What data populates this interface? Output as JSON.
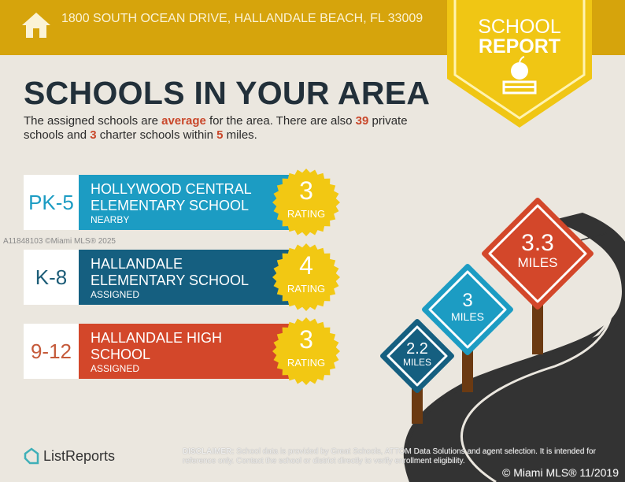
{
  "header": {
    "address": "1800 SOUTH OCEAN DRIVE, HALLANDALE BEACH, FL 33009",
    "icon": "house-icon"
  },
  "badge": {
    "line1": "SCHOOL",
    "line2": "REPORT",
    "icon": "apple-books-icon"
  },
  "title": "SCHOOLS IN YOUR AREA",
  "summary": {
    "p1": "The assigned schools are ",
    "quality": "average",
    "p2": " for the area. There are also ",
    "private_count": "39",
    "p3": " private schools and ",
    "charter_count": "3",
    "p4": " charter schools within ",
    "miles": "5",
    "p5": " miles."
  },
  "schools": [
    {
      "grades": "PK-5",
      "name": "HOLLYWOOD CENTRAL ELEMENTARY SCHOOL",
      "status": "NEARBY",
      "rating": "3",
      "rating_label": "RATING",
      "color": "#1c9cc3",
      "distance": "3",
      "distance_unit": "MILES"
    },
    {
      "grades": "K-8",
      "name": "HALLANDALE ELEMENTARY SCHOOL",
      "status": "ASSIGNED",
      "rating": "4",
      "rating_label": "RATING",
      "color": "#155f80",
      "distance": "2.2",
      "distance_unit": "MILES"
    },
    {
      "grades": "9-12",
      "name": "HALLANDALE HIGH SCHOOL",
      "status": "ASSIGNED",
      "rating": "3",
      "rating_label": "RATING",
      "color": "#d3472a",
      "distance": "3.3",
      "distance_unit": "MILES"
    }
  ],
  "watermark": "A11848103 ©Miami MLS® 2025",
  "footer": {
    "brand": "ListReports",
    "disclaimer_label": "DISCLAIMER:",
    "disclaimer": " School data is provided by Great Schools, ATTOM Data Solutions and agent selection. It is intended for reference only. Contact the school or district directly to verify enrollment eligibility.",
    "copyright": "© Miami MLS® 11/2019"
  },
  "colors": {
    "header": "#d6a40c",
    "badge": "#f0c614",
    "background": "#ebe7df",
    "title": "#22303a",
    "highlight": "#c9472a"
  }
}
